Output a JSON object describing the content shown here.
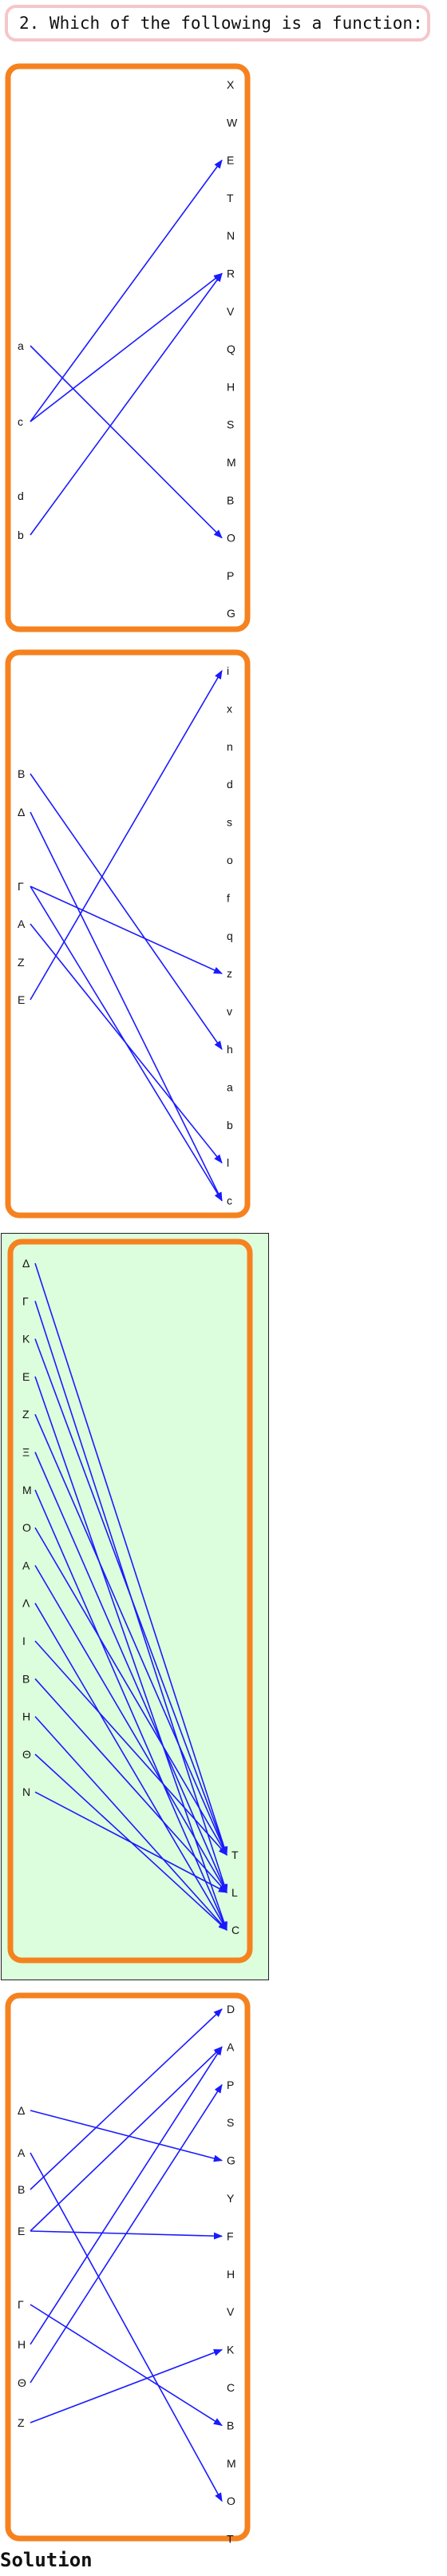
{
  "question": {
    "text": "2. Which of the following is a function:"
  },
  "options": [
    {
      "domain": [
        "a",
        "c",
        "d",
        "b"
      ],
      "codomain": [
        "X",
        "W",
        "E",
        "T",
        "N",
        "R",
        "V",
        "Q",
        "H",
        "S",
        "M",
        "B",
        "O",
        "P",
        "G"
      ],
      "arrows": [
        [
          "a",
          "O"
        ],
        [
          "c",
          "E"
        ],
        [
          "c",
          "R"
        ],
        [
          "b",
          "R"
        ]
      ],
      "selected": false
    },
    {
      "domain": [
        "B",
        "Δ",
        "Γ",
        "A",
        "Z",
        "E"
      ],
      "codomain": [
        "i",
        "x",
        "n",
        "d",
        "s",
        "o",
        "f",
        "q",
        "z",
        "v",
        "h",
        "a",
        "b",
        "l",
        "c"
      ],
      "arrows": [
        [
          "B",
          "h"
        ],
        [
          "Δ",
          "c"
        ],
        [
          "Γ",
          "z"
        ],
        [
          "Γ",
          "c"
        ],
        [
          "A",
          "l"
        ],
        [
          "E",
          "i"
        ]
      ],
      "selected": false
    },
    {
      "domain": [
        "Δ",
        "Γ",
        "K",
        "E",
        "Z",
        "Ξ",
        "M",
        "O",
        "A",
        "Λ",
        "I",
        "B",
        "H",
        "Θ",
        "N"
      ],
      "codomain": [
        "T",
        "L",
        "C"
      ],
      "arrows": [
        [
          "Δ",
          "T"
        ],
        [
          "Γ",
          "L"
        ],
        [
          "K",
          "T"
        ],
        [
          "E",
          "C"
        ],
        [
          "Z",
          "T"
        ],
        [
          "Ξ",
          "L"
        ],
        [
          "M",
          "C"
        ],
        [
          "O",
          "T"
        ],
        [
          "A",
          "L"
        ],
        [
          "Λ",
          "C"
        ],
        [
          "I",
          "T"
        ],
        [
          "B",
          "L"
        ],
        [
          "H",
          "C"
        ],
        [
          "Θ",
          "C"
        ],
        [
          "N",
          "L"
        ]
      ],
      "selected": true,
      "highlight_color": "#dcfedc"
    },
    {
      "domain": [
        "Δ",
        "A",
        "B",
        "E",
        "Γ",
        "H",
        "Θ",
        "Z"
      ],
      "codomain": [
        "D",
        "A",
        "P",
        "S",
        "G",
        "Y",
        "F",
        "H",
        "V",
        "K",
        "C",
        "B",
        "M",
        "O",
        "T"
      ],
      "arrows": [
        [
          "Δ",
          "G"
        ],
        [
          "A",
          "O"
        ],
        [
          "B",
          "D"
        ],
        [
          "E",
          "A"
        ],
        [
          "E",
          "F"
        ],
        [
          "Γ",
          "B"
        ],
        [
          "H",
          "A"
        ],
        [
          "Θ",
          "P"
        ],
        [
          "Z",
          "K"
        ]
      ],
      "selected": false
    }
  ],
  "solution": {
    "label": "Solution"
  },
  "colors": {
    "frame": "#f5821f",
    "arrow": "#1a1aff",
    "highlight": "#dcfedc",
    "question_border": "#f5c6cb"
  }
}
